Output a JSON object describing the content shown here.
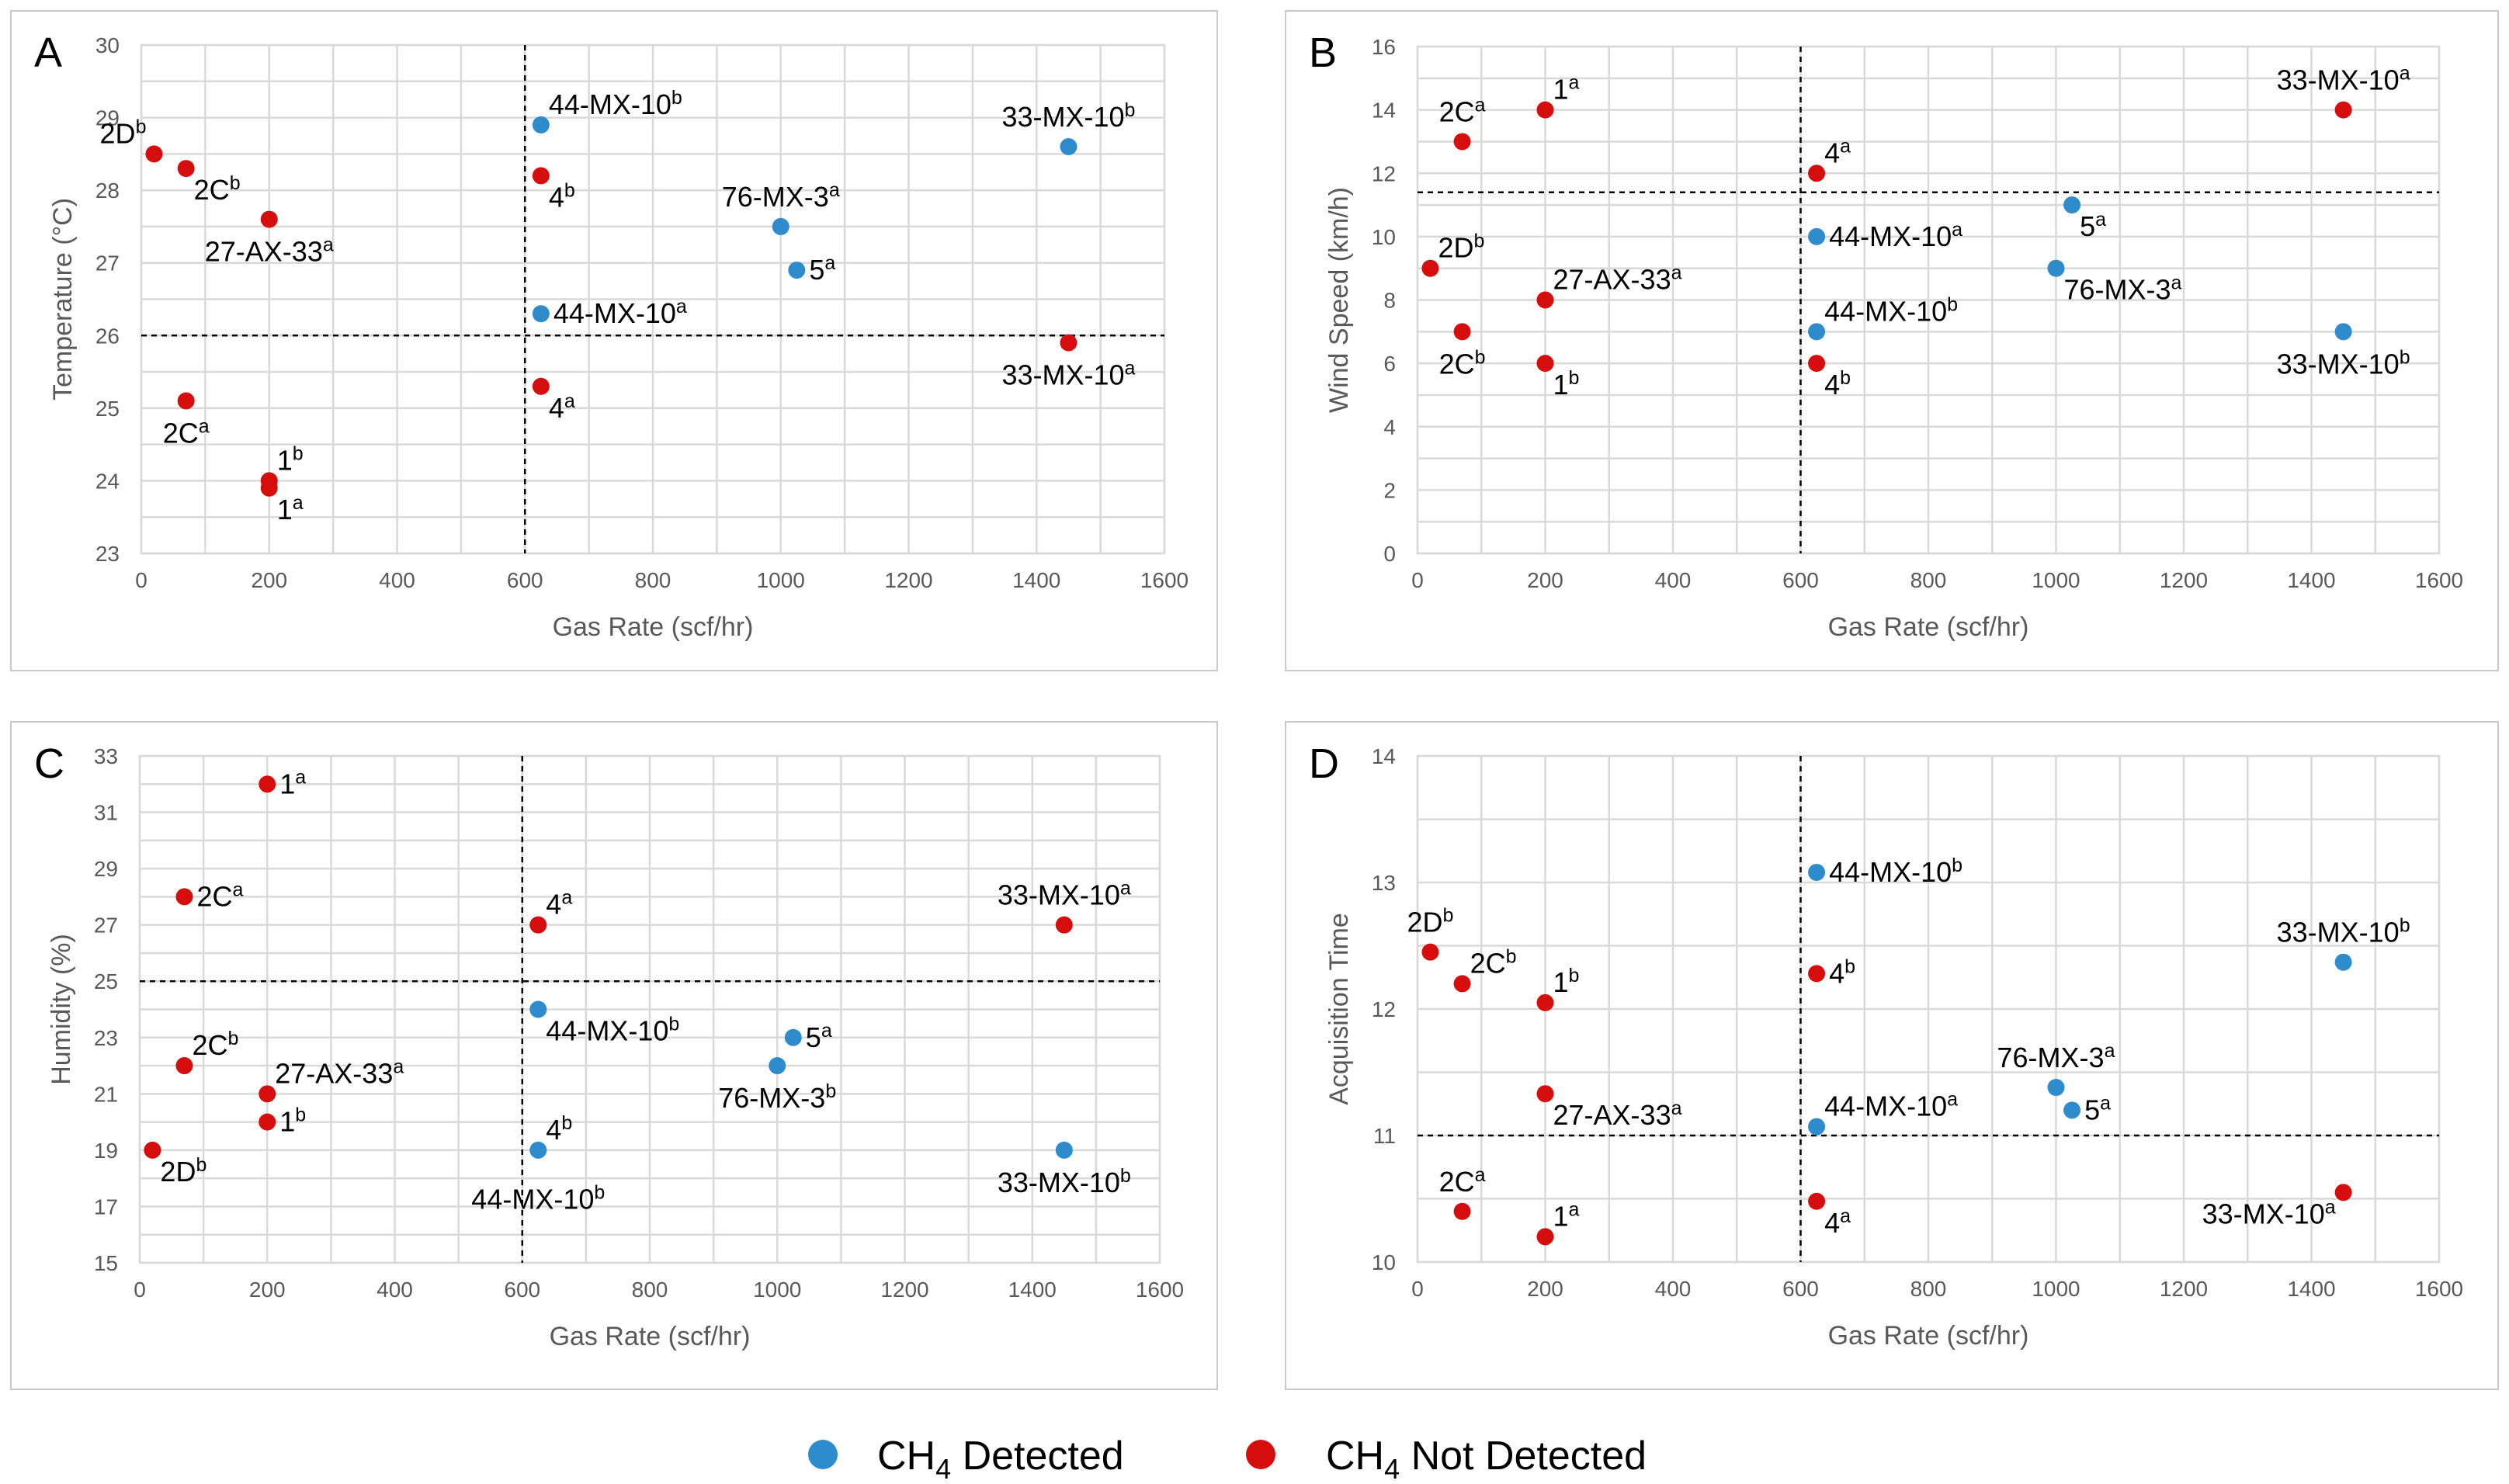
{
  "colors": {
    "detected": "#2E8BCC",
    "not_detected": "#D60D0D"
  },
  "legend": [
    {
      "key": "detected",
      "base": "CH",
      "sub": "4",
      "rest": " Detected"
    },
    {
      "key": "not_detected",
      "base": "CH",
      "sub": "4",
      "rest": " Not Detected"
    }
  ],
  "chart_data": [
    {
      "panel": "A",
      "type": "scatter",
      "xlabel": "Gas Rate (scf/hr)",
      "ylabel": "Temperature (°C)",
      "xlim": [
        0,
        1600
      ],
      "xtick_step": 200,
      "ylim": [
        23,
        30
      ],
      "ytick_step": 1,
      "threshold_x": 600,
      "threshold_y": 26,
      "points": [
        {
          "x": 20,
          "y": 28.5,
          "status": "not_detected",
          "label": "2D",
          "sup": "b",
          "pos": "nw"
        },
        {
          "x": 70,
          "y": 28.3,
          "status": "not_detected",
          "label": "2C",
          "sup": "b",
          "pos": "se"
        },
        {
          "x": 200,
          "y": 27.6,
          "status": "not_detected",
          "label": "27-AX-33",
          "sup": "a",
          "pos": "s"
        },
        {
          "x": 70,
          "y": 25.1,
          "status": "not_detected",
          "label": "2C",
          "sup": "a",
          "pos": "s"
        },
        {
          "x": 200,
          "y": 24.0,
          "status": "not_detected",
          "label": "1",
          "sup": "b",
          "pos": "ne"
        },
        {
          "x": 200,
          "y": 23.9,
          "status": "not_detected",
          "label": "1",
          "sup": "a",
          "pos": "se"
        },
        {
          "x": 625,
          "y": 28.9,
          "status": "detected",
          "label": "44-MX-10",
          "sup": "b",
          "pos": "ne"
        },
        {
          "x": 625,
          "y": 28.2,
          "status": "not_detected",
          "label": "4",
          "sup": "b",
          "pos": "se"
        },
        {
          "x": 625,
          "y": 26.3,
          "status": "detected",
          "label": "44-MX-10",
          "sup": "a",
          "pos": "e"
        },
        {
          "x": 625,
          "y": 25.3,
          "status": "not_detected",
          "label": "4",
          "sup": "a",
          "pos": "se"
        },
        {
          "x": 1000,
          "y": 27.5,
          "status": "detected",
          "label": "76-MX-3",
          "sup": "a",
          "pos": "n"
        },
        {
          "x": 1025,
          "y": 26.9,
          "status": "detected",
          "label": "5",
          "sup": "a",
          "pos": "e"
        },
        {
          "x": 1450,
          "y": 28.6,
          "status": "detected",
          "label": "33-MX-10",
          "sup": "b",
          "pos": "n"
        },
        {
          "x": 1450,
          "y": 25.9,
          "status": "not_detected",
          "label": "33-MX-10",
          "sup": "a",
          "pos": "s"
        }
      ]
    },
    {
      "panel": "B",
      "type": "scatter",
      "xlabel": "Gas Rate (scf/hr)",
      "ylabel": "Wind Speed (km/h)",
      "xlim": [
        0,
        1600
      ],
      "xtick_step": 200,
      "ylim": [
        0,
        16
      ],
      "ytick_step": 2,
      "threshold_x": 600,
      "threshold_y": 11.4,
      "points": [
        {
          "x": 70,
          "y": 13,
          "status": "not_detected",
          "label": "2C",
          "sup": "a",
          "pos": "n"
        },
        {
          "x": 200,
          "y": 14,
          "status": "not_detected",
          "label": "1",
          "sup": "a",
          "pos": "ne"
        },
        {
          "x": 20,
          "y": 9,
          "status": "not_detected",
          "label": "2D",
          "sup": "b",
          "pos": "ne"
        },
        {
          "x": 70,
          "y": 7,
          "status": "not_detected",
          "label": "2C",
          "sup": "b",
          "pos": "s"
        },
        {
          "x": 200,
          "y": 8,
          "status": "not_detected",
          "label": "27-AX-33",
          "sup": "a",
          "pos": "ne"
        },
        {
          "x": 200,
          "y": 6,
          "status": "not_detected",
          "label": "1",
          "sup": "b",
          "pos": "se"
        },
        {
          "x": 625,
          "y": 12,
          "status": "not_detected",
          "label": "4",
          "sup": "a",
          "pos": "ne"
        },
        {
          "x": 625,
          "y": 10,
          "status": "detected",
          "label": "44-MX-10",
          "sup": "a",
          "pos": "e"
        },
        {
          "x": 625,
          "y": 7,
          "status": "detected",
          "label": "44-MX-10",
          "sup": "b",
          "pos": "ne"
        },
        {
          "x": 625,
          "y": 6,
          "status": "not_detected",
          "label": "4",
          "sup": "b",
          "pos": "se"
        },
        {
          "x": 1025,
          "y": 11,
          "status": "detected",
          "label": "5",
          "sup": "a",
          "pos": "se"
        },
        {
          "x": 1000,
          "y": 9,
          "status": "detected",
          "label": "76-MX-3",
          "sup": "a",
          "pos": "se"
        },
        {
          "x": 1450,
          "y": 14,
          "status": "not_detected",
          "label": "33-MX-10",
          "sup": "a",
          "pos": "n"
        },
        {
          "x": 1450,
          "y": 7,
          "status": "detected",
          "label": "33-MX-10",
          "sup": "b",
          "pos": "s"
        }
      ]
    },
    {
      "panel": "C",
      "type": "scatter",
      "xlabel": "Gas Rate (scf/hr)",
      "ylabel": "Humidity (%)",
      "xlim": [
        0,
        1600
      ],
      "xtick_step": 200,
      "ylim": [
        15,
        33
      ],
      "ytick_step": 2,
      "threshold_x": 600,
      "threshold_y": 25,
      "points": [
        {
          "x": 200,
          "y": 32,
          "status": "not_detected",
          "label": "1",
          "sup": "a",
          "pos": "e"
        },
        {
          "x": 70,
          "y": 28,
          "status": "not_detected",
          "label": "2C",
          "sup": "a",
          "pos": "e"
        },
        {
          "x": 70,
          "y": 22,
          "status": "not_detected",
          "label": "2C",
          "sup": "b",
          "pos": "ne"
        },
        {
          "x": 200,
          "y": 21,
          "status": "not_detected",
          "label": "27-AX-33",
          "sup": "a",
          "pos": "ne"
        },
        {
          "x": 200,
          "y": 20,
          "status": "not_detected",
          "label": "1",
          "sup": "b",
          "pos": "e"
        },
        {
          "x": 20,
          "y": 19,
          "status": "not_detected",
          "label": "2D",
          "sup": "b",
          "pos": "se"
        },
        {
          "x": 625,
          "y": 27,
          "status": "not_detected",
          "label": "4",
          "sup": "a",
          "pos": "ne"
        },
        {
          "x": 625,
          "y": 24,
          "status": "detected",
          "label": "44-MX-10",
          "sup": "b",
          "pos": "se"
        },
        {
          "x": 625,
          "y": 19,
          "status": "detected",
          "label": "4",
          "sup": "b",
          "pos": "ne"
        },
        {
          "x": 625,
          "y": 18.4,
          "status": "detected",
          "label": "44-MX-10",
          "sup": "b",
          "pos": "s",
          "no_marker": true
        },
        {
          "x": 1025,
          "y": 23,
          "status": "detected",
          "label": "5",
          "sup": "a",
          "pos": "e"
        },
        {
          "x": 1000,
          "y": 22,
          "status": "detected",
          "label": "76-MX-3",
          "sup": "b",
          "pos": "s"
        },
        {
          "x": 1450,
          "y": 27,
          "status": "not_detected",
          "label": "33-MX-10",
          "sup": "a",
          "pos": "n"
        },
        {
          "x": 1450,
          "y": 19,
          "status": "detected",
          "label": "33-MX-10",
          "sup": "b",
          "pos": "s"
        }
      ]
    },
    {
      "panel": "D",
      "type": "scatter",
      "xlabel": "Gas Rate (scf/hr)",
      "ylabel": "Acquisition Time",
      "xlim": [
        0,
        1600
      ],
      "xtick_step": 200,
      "ylim": [
        10,
        14
      ],
      "ytick_step": 1,
      "threshold_x": 600,
      "threshold_y": 11,
      "points": [
        {
          "x": 20,
          "y": 12.45,
          "status": "not_detected",
          "label": "2D",
          "sup": "b",
          "pos": "n"
        },
        {
          "x": 70,
          "y": 12.2,
          "status": "not_detected",
          "label": "2C",
          "sup": "b",
          "pos": "ne"
        },
        {
          "x": 200,
          "y": 12.05,
          "status": "not_detected",
          "label": "1",
          "sup": "b",
          "pos": "ne"
        },
        {
          "x": 200,
          "y": 11.33,
          "status": "not_detected",
          "label": "27-AX-33",
          "sup": "a",
          "pos": "se"
        },
        {
          "x": 70,
          "y": 10.4,
          "status": "not_detected",
          "label": "2C",
          "sup": "a",
          "pos": "n"
        },
        {
          "x": 200,
          "y": 10.2,
          "status": "not_detected",
          "label": "1",
          "sup": "a",
          "pos": "ne"
        },
        {
          "x": 625,
          "y": 13.08,
          "status": "detected",
          "label": "44-MX-10",
          "sup": "b",
          "pos": "e"
        },
        {
          "x": 625,
          "y": 12.28,
          "status": "not_detected",
          "label": "4",
          "sup": "b",
          "pos": "e"
        },
        {
          "x": 625,
          "y": 11.07,
          "status": "detected",
          "label": "44-MX-10",
          "sup": "a",
          "pos": "ne"
        },
        {
          "x": 625,
          "y": 10.48,
          "status": "not_detected",
          "label": "4",
          "sup": "a",
          "pos": "se"
        },
        {
          "x": 1000,
          "y": 11.38,
          "status": "detected",
          "label": "76-MX-3",
          "sup": "a",
          "pos": "n"
        },
        {
          "x": 1025,
          "y": 11.2,
          "status": "detected",
          "label": "5",
          "sup": "a",
          "pos": "e"
        },
        {
          "x": 1450,
          "y": 12.37,
          "status": "detected",
          "label": "33-MX-10",
          "sup": "b",
          "pos": "n"
        },
        {
          "x": 1450,
          "y": 10.55,
          "status": "not_detected",
          "label": "33-MX-10",
          "sup": "a",
          "pos": "sw"
        }
      ]
    }
  ]
}
